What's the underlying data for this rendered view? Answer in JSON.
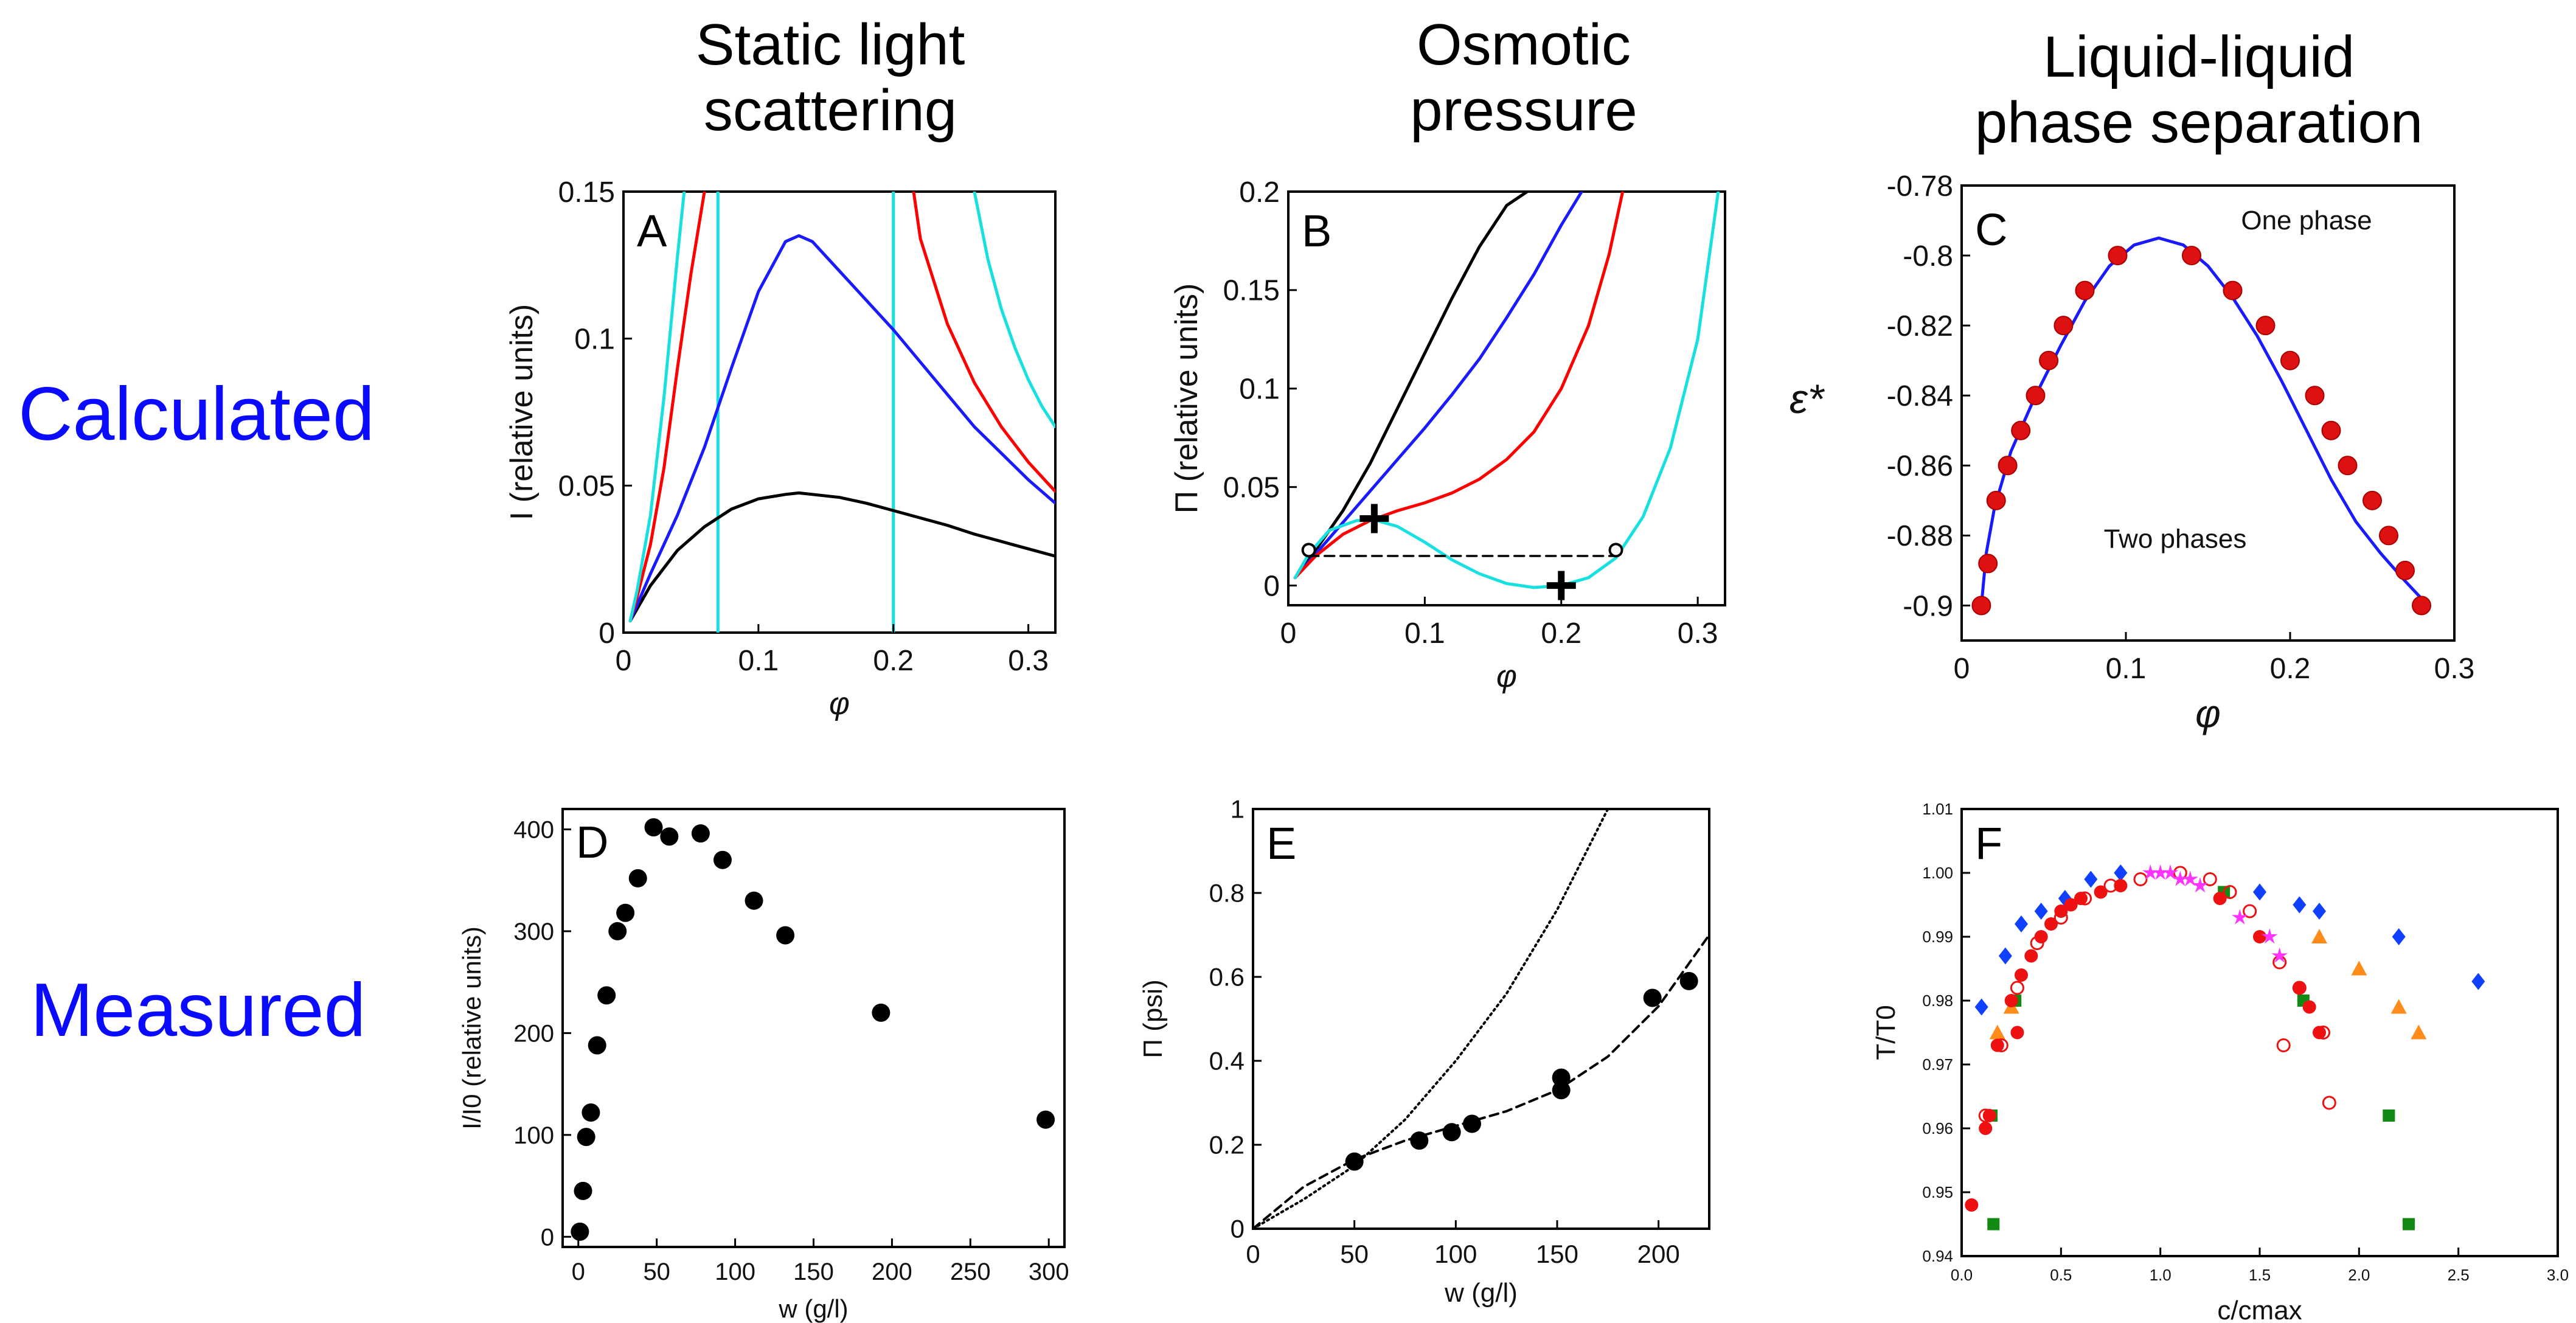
{
  "column_titles": [
    "Static light\nscattering",
    "Osmotic\npressure",
    "Liquid-liquid\nphase separation"
  ],
  "row_labels": {
    "top": "Calculated",
    "bottom": "Measured"
  },
  "colors": {
    "row_label": "#0a0aff",
    "black": "#000000",
    "red": "#ff0000",
    "blue": "#1a1aff",
    "cyan": "#18e0e0",
    "green": "#138a13",
    "orange": "#ff8c1a",
    "magenta": "#ff33ff",
    "navy": "#1040ff"
  },
  "chart_data": [
    {
      "panel": "A",
      "type": "line",
      "xlabel": "φ",
      "ylabel": "I (relative units)",
      "xlim": [
        0,
        0.32
      ],
      "ylim": [
        0,
        0.15
      ],
      "xticks": [
        0,
        0.1,
        0.2,
        0.3
      ],
      "xticklabels": [
        "0",
        "0.1",
        "0.2",
        "0.3"
      ],
      "yticks": [
        0,
        0.05,
        0.1,
        0.15
      ],
      "yticklabels": [
        "0",
        "0.05",
        "0.1",
        "0.15"
      ],
      "vlines": [
        0.07,
        0.2
      ],
      "series": [
        {
          "name": "black",
          "color": "#000000",
          "x": [
            0.005,
            0.02,
            0.04,
            0.06,
            0.08,
            0.1,
            0.12,
            0.13,
            0.14,
            0.16,
            0.18,
            0.2,
            0.22,
            0.24,
            0.26,
            0.28,
            0.3,
            0.32
          ],
          "y": [
            0.004,
            0.016,
            0.028,
            0.036,
            0.042,
            0.0455,
            0.047,
            0.0475,
            0.047,
            0.046,
            0.044,
            0.0415,
            0.039,
            0.0365,
            0.0335,
            0.031,
            0.0285,
            0.026
          ]
        },
        {
          "name": "blue",
          "color": "#1a1aff",
          "x": [
            0.005,
            0.02,
            0.04,
            0.06,
            0.08,
            0.1,
            0.12,
            0.13,
            0.14,
            0.16,
            0.18,
            0.2,
            0.22,
            0.24,
            0.26,
            0.28,
            0.3,
            0.32
          ],
          "y": [
            0.004,
            0.02,
            0.04,
            0.063,
            0.09,
            0.116,
            0.133,
            0.135,
            0.133,
            0.123,
            0.113,
            0.103,
            0.092,
            0.081,
            0.07,
            0.061,
            0.052,
            0.044
          ]
        },
        {
          "name": "red",
          "color": "#ff0000",
          "x": [
            0.005,
            0.01,
            0.02,
            0.03,
            0.04,
            0.05,
            0.06
          ],
          "y": [
            0.004,
            0.012,
            0.03,
            0.056,
            0.09,
            0.122,
            0.15
          ]
        },
        {
          "name": "red-right",
          "color": "#ff0000",
          "x": [
            0.215,
            0.22,
            0.24,
            0.26,
            0.28,
            0.3,
            0.32
          ],
          "y": [
            0.15,
            0.134,
            0.105,
            0.085,
            0.07,
            0.058,
            0.048
          ]
        },
        {
          "name": "cyan",
          "color": "#18e0e0",
          "x": [
            0.005,
            0.01,
            0.02,
            0.03,
            0.04,
            0.045
          ],
          "y": [
            0.004,
            0.014,
            0.04,
            0.08,
            0.128,
            0.15
          ]
        },
        {
          "name": "cyan-right",
          "color": "#18e0e0",
          "x": [
            0.26,
            0.27,
            0.28,
            0.29,
            0.3,
            0.31,
            0.32
          ],
          "y": [
            0.15,
            0.127,
            0.11,
            0.097,
            0.086,
            0.077,
            0.07
          ]
        }
      ],
      "annotation": "A"
    },
    {
      "panel": "B",
      "type": "line",
      "xlabel": "φ",
      "ylabel": "Π (relative units)",
      "xlim": [
        0,
        0.32
      ],
      "ylim": [
        -0.01,
        0.2
      ],
      "xticks": [
        0,
        0.1,
        0.2,
        0.3
      ],
      "xticklabels": [
        "0",
        "0.1",
        "0.2",
        "0.3"
      ],
      "yticks": [
        0,
        0.05,
        0.1,
        0.15,
        0.2
      ],
      "yticklabels": [
        "0",
        "0.05",
        "0.1",
        "0.15",
        "0.2"
      ],
      "tie_line": {
        "x": [
          0.015,
          0.24
        ],
        "y": [
          0.015,
          0.015
        ],
        "style": "dashed"
      },
      "open_points": [
        {
          "x": 0.015,
          "y": 0.018
        },
        {
          "x": 0.24,
          "y": 0.018
        }
      ],
      "cross_points": [
        {
          "x": 0.063,
          "y": 0.034
        },
        {
          "x": 0.2,
          "y": 0.0
        }
      ],
      "series": [
        {
          "name": "black",
          "color": "#000000",
          "x": [
            0.005,
            0.02,
            0.04,
            0.06,
            0.08,
            0.1,
            0.12,
            0.14,
            0.16,
            0.175
          ],
          "y": [
            0.004,
            0.018,
            0.038,
            0.062,
            0.09,
            0.118,
            0.146,
            0.172,
            0.193,
            0.2
          ]
        },
        {
          "name": "blue",
          "color": "#1a1aff",
          "x": [
            0.005,
            0.02,
            0.04,
            0.06,
            0.08,
            0.1,
            0.12,
            0.14,
            0.16,
            0.18,
            0.2,
            0.215
          ],
          "y": [
            0.004,
            0.016,
            0.032,
            0.048,
            0.064,
            0.08,
            0.097,
            0.115,
            0.136,
            0.158,
            0.183,
            0.2
          ]
        },
        {
          "name": "red",
          "color": "#ff0000",
          "x": [
            0.005,
            0.02,
            0.04,
            0.06,
            0.08,
            0.1,
            0.12,
            0.14,
            0.16,
            0.18,
            0.2,
            0.22,
            0.235,
            0.245
          ],
          "y": [
            0.004,
            0.015,
            0.026,
            0.033,
            0.038,
            0.042,
            0.047,
            0.054,
            0.064,
            0.078,
            0.1,
            0.132,
            0.168,
            0.2
          ]
        },
        {
          "name": "cyan",
          "color": "#18e0e0",
          "x": [
            0.005,
            0.015,
            0.03,
            0.05,
            0.065,
            0.08,
            0.1,
            0.12,
            0.14,
            0.16,
            0.18,
            0.2,
            0.22,
            0.24,
            0.26,
            0.28,
            0.3,
            0.315
          ],
          "y": [
            0.004,
            0.016,
            0.028,
            0.033,
            0.033,
            0.03,
            0.022,
            0.013,
            0.006,
            0.001,
            -0.001,
            0.0,
            0.004,
            0.014,
            0.035,
            0.07,
            0.125,
            0.2
          ]
        }
      ],
      "annotation": "B"
    },
    {
      "panel": "C",
      "type": "scatter",
      "xlabel": "φ",
      "ylabel": "ε*",
      "xlim": [
        0,
        0.3
      ],
      "ylim": [
        -0.91,
        -0.78
      ],
      "xticks": [
        0,
        0.1,
        0.2,
        0.3
      ],
      "xticklabels": [
        "0",
        "0.1",
        "0.2",
        "0.3"
      ],
      "yticks": [
        -0.9,
        -0.88,
        -0.86,
        -0.84,
        -0.82,
        -0.8,
        -0.78
      ],
      "yticklabels": [
        "-0.9",
        "-0.88",
        "-0.86",
        "-0.84",
        "-0.82",
        "-0.8",
        "-0.78"
      ],
      "region_labels": [
        "One phase",
        "Two phases"
      ],
      "curve": {
        "color": "#1a1aff",
        "x": [
          0.012,
          0.015,
          0.02,
          0.03,
          0.045,
          0.06,
          0.075,
          0.09,
          0.105,
          0.12,
          0.135,
          0.15,
          0.165,
          0.18,
          0.195,
          0.21,
          0.225,
          0.24,
          0.255,
          0.27,
          0.28,
          0.285
        ],
        "y": [
          -0.9,
          -0.885,
          -0.872,
          -0.856,
          -0.84,
          -0.826,
          -0.813,
          -0.803,
          -0.797,
          -0.795,
          -0.797,
          -0.803,
          -0.812,
          -0.823,
          -0.836,
          -0.85,
          -0.864,
          -0.876,
          -0.885,
          -0.893,
          -0.898,
          -0.9
        ]
      },
      "points": {
        "color": "#dd1111",
        "x": [
          0.012,
          0.016,
          0.021,
          0.028,
          0.036,
          0.045,
          0.053,
          0.062,
          0.075,
          0.095,
          0.14,
          0.165,
          0.185,
          0.2,
          0.215,
          0.225,
          0.235,
          0.25,
          0.26,
          0.27,
          0.28
        ],
        "y": [
          -0.9,
          -0.888,
          -0.87,
          -0.86,
          -0.85,
          -0.84,
          -0.83,
          -0.82,
          -0.81,
          -0.8,
          -0.8,
          -0.81,
          -0.82,
          -0.83,
          -0.84,
          -0.85,
          -0.86,
          -0.87,
          -0.88,
          -0.89,
          -0.9
        ]
      },
      "annotation": "C"
    },
    {
      "panel": "D",
      "type": "scatter",
      "xlabel": "w (g/l)",
      "ylabel": "I/I0 (relative units)",
      "xlim": [
        -10,
        310
      ],
      "ylim": [
        -10,
        420
      ],
      "xticks": [
        0,
        50,
        100,
        150,
        200,
        250,
        300
      ],
      "xticklabels": [
        "0",
        "50",
        "100",
        "150",
        "200",
        "250",
        "300"
      ],
      "yticks": [
        0,
        100,
        200,
        300,
        400
      ],
      "yticklabels": [
        "0",
        "100",
        "200",
        "300",
        "400"
      ],
      "points": {
        "color": "#000000",
        "x": [
          1,
          3,
          5,
          8,
          12,
          18,
          25,
          30,
          38,
          48,
          58,
          78,
          92,
          112,
          132,
          193,
          298
        ],
        "y": [
          5,
          45,
          98,
          122,
          188,
          237,
          300,
          318,
          352,
          402,
          393,
          396,
          370,
          330,
          296,
          220,
          115
        ]
      },
      "annotation": "D"
    },
    {
      "panel": "E",
      "type": "scatter",
      "xlabel": "w (g/l)",
      "ylabel": "Π (psi)",
      "xlim": [
        0,
        225
      ],
      "ylim": [
        0,
        1.0
      ],
      "xticks": [
        0,
        50,
        100,
        150,
        200
      ],
      "xticklabels": [
        "0",
        "50",
        "100",
        "150",
        "200"
      ],
      "yticks": [
        0,
        0.2,
        0.4,
        0.6,
        0.8,
        1
      ],
      "yticklabels": [
        "0",
        "0.2",
        "0.4",
        "0.6",
        "0.8",
        "1"
      ],
      "curves": [
        {
          "name": "dotted",
          "color": "#000000",
          "style": "dotted",
          "x": [
            0,
            25,
            50,
            75,
            100,
            125,
            150,
            175
          ],
          "y": [
            0,
            0.07,
            0.15,
            0.26,
            0.4,
            0.56,
            0.76,
            1.0
          ]
        },
        {
          "name": "dashed",
          "color": "#000000",
          "style": "dashed",
          "x": [
            0,
            25,
            50,
            75,
            100,
            125,
            150,
            175,
            200,
            225
          ],
          "y": [
            0,
            0.1,
            0.165,
            0.21,
            0.245,
            0.28,
            0.33,
            0.41,
            0.53,
            0.7
          ]
        }
      ],
      "points": {
        "color": "#000000",
        "x": [
          50,
          82,
          98,
          108,
          152,
          152,
          197,
          215
        ],
        "y": [
          0.16,
          0.21,
          0.23,
          0.25,
          0.36,
          0.33,
          0.55,
          0.59
        ]
      },
      "annotation": "E"
    },
    {
      "panel": "F",
      "type": "scatter",
      "xlabel": "c/cmax",
      "ylabel": "T/T0",
      "xlim": [
        0,
        3.0
      ],
      "ylim": [
        0.94,
        1.01
      ],
      "xticks": [
        0,
        0.5,
        1,
        1.5,
        2,
        2.5,
        3
      ],
      "xticklabels": [
        "0.0",
        "0.5",
        "1.0",
        "1.5",
        "2.0",
        "2.5",
        "3.0"
      ],
      "yticks": [
        0.94,
        0.95,
        0.96,
        0.97,
        0.98,
        0.99,
        1.0,
        1.01
      ],
      "yticklabels": [
        "0.94",
        "0.95",
        "0.96",
        "0.97",
        "0.98",
        "0.99",
        "1.00",
        "1.01"
      ],
      "series": [
        {
          "name": "blue-diamonds",
          "marker": "diamond",
          "color": "#1040ff",
          "x": [
            0.1,
            0.22,
            0.3,
            0.4,
            0.52,
            0.65,
            0.8,
            1.5,
            1.7,
            1.8,
            2.2,
            2.6
          ],
          "y": [
            0.979,
            0.987,
            0.992,
            0.994,
            0.996,
            0.999,
            1.0,
            0.997,
            0.995,
            0.994,
            0.99,
            0.983
          ]
        },
        {
          "name": "orange-triangles",
          "marker": "triangle",
          "color": "#ff8c1a",
          "x": [
            0.18,
            0.25,
            1.8,
            2.0,
            2.2,
            2.3
          ],
          "y": [
            0.975,
            0.979,
            0.99,
            0.985,
            0.979,
            0.975
          ]
        },
        {
          "name": "green-squares",
          "marker": "square",
          "color": "#138a13",
          "x": [
            0.15,
            0.27,
            1.32,
            1.72,
            2.15,
            2.25,
            0.16
          ],
          "y": [
            0.962,
            0.98,
            0.997,
            0.98,
            0.962,
            0.945,
            0.945
          ]
        },
        {
          "name": "red-circles",
          "marker": "circle",
          "color": "#ee1111",
          "x": [
            0.05,
            0.12,
            0.18,
            0.25,
            0.3,
            0.35,
            0.4,
            0.45,
            0.5,
            0.55,
            0.6,
            0.7,
            0.8,
            1.3,
            1.5,
            1.7,
            1.75,
            1.8,
            0.14,
            0.28
          ],
          "y": [
            0.948,
            0.96,
            0.973,
            0.98,
            0.984,
            0.987,
            0.99,
            0.992,
            0.994,
            0.995,
            0.996,
            0.997,
            0.998,
            0.996,
            0.99,
            0.982,
            0.979,
            0.975,
            0.962,
            0.975
          ]
        },
        {
          "name": "open-red-circles",
          "marker": "open-circle",
          "color": "#ee1111",
          "x": [
            0.12,
            0.2,
            0.28,
            0.38,
            0.5,
            0.62,
            0.75,
            0.9,
            1.1,
            1.25,
            1.35,
            1.45,
            1.6,
            1.7,
            1.82,
            1.85,
            1.62
          ],
          "y": [
            0.962,
            0.973,
            0.982,
            0.989,
            0.993,
            0.996,
            0.998,
            0.999,
            1.0,
            0.999,
            0.997,
            0.994,
            0.986,
            0.982,
            0.975,
            0.964,
            0.973
          ]
        },
        {
          "name": "magenta-stars",
          "marker": "star",
          "color": "#ff33ff",
          "x": [
            0.95,
            1.0,
            1.05,
            1.1,
            1.15,
            1.2,
            1.4,
            1.55,
            1.6
          ],
          "y": [
            1.0,
            1.0,
            1.0,
            0.999,
            0.999,
            0.998,
            0.993,
            0.99,
            0.987
          ]
        }
      ],
      "annotation": "F"
    }
  ]
}
